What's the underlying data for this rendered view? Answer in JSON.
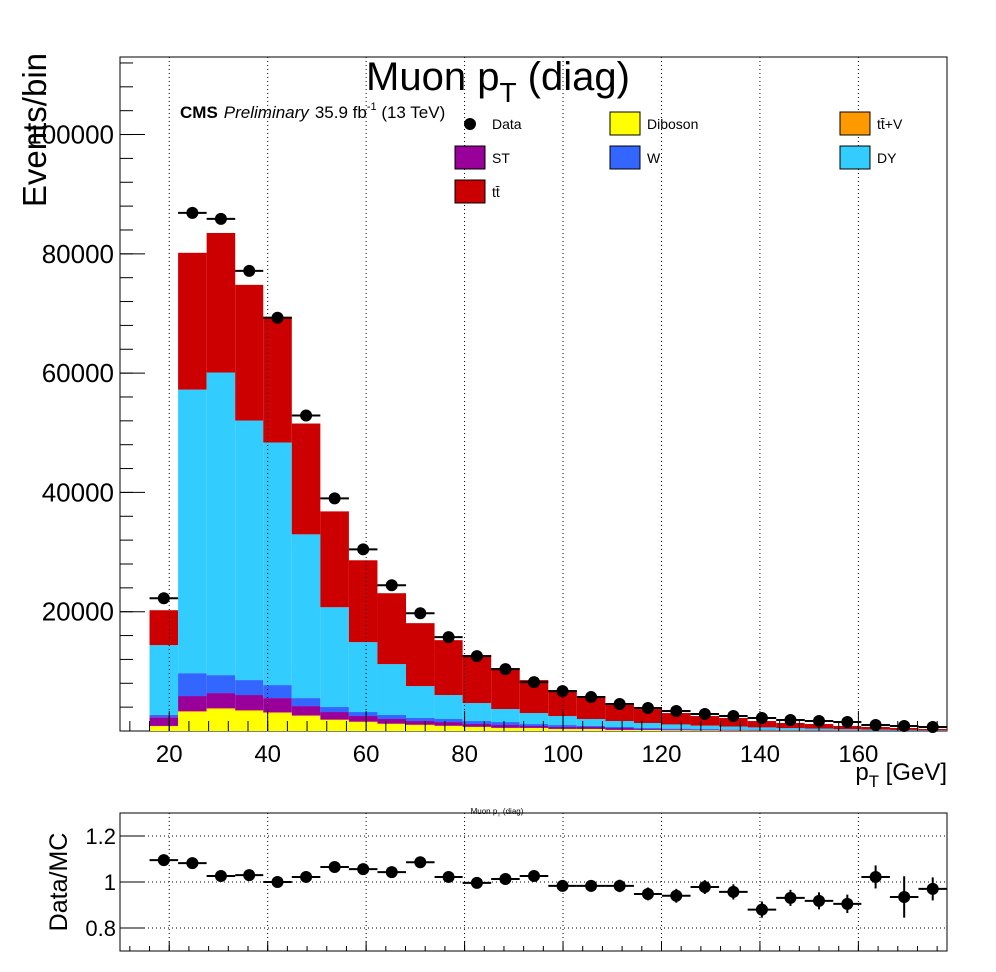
{
  "chart_data": [
    {
      "type": "stacked_histogram",
      "title": [
        "Muon p",
        "T",
        " (diag)"
      ],
      "cms": "CMS",
      "preliminary": "Preliminary",
      "lumi": [
        "35.9 fb",
        "-1",
        " (13 TeV)"
      ],
      "xlabel": [
        "p",
        "T",
        " [GeV]"
      ],
      "ylabel": "Events/bin",
      "bins": [
        16,
        21.8,
        27.6,
        33.4,
        39.1,
        44.9,
        50.7,
        56.5,
        62.3,
        68.1,
        73.9,
        79.6,
        85.4,
        91.2,
        97,
        102.8,
        108.6,
        114.4,
        120.1,
        125.9,
        131.7,
        137.5,
        143.3,
        149.1,
        154.9,
        160.6,
        166.4,
        172.2,
        178
      ],
      "series": [
        {
          "name": "Diboson",
          "color": "#ffff00",
          "values": [
            800,
            3180,
            3680,
            3350,
            3010,
            2510,
            1840,
            1500,
            1170,
            1000,
            840,
            670,
            500,
            500,
            330,
            330,
            170,
            170,
            120,
            100,
            80,
            70,
            60,
            50,
            40,
            30,
            20,
            15
          ]
        },
        {
          "name": "tt̄+V",
          "color": "#ff9900",
          "values": [
            50,
            150,
            150,
            150,
            130,
            110,
            90,
            70,
            60,
            50,
            40,
            30,
            30,
            20,
            20,
            15,
            15,
            10,
            10,
            8,
            6,
            5,
            4,
            3,
            3,
            2,
            2,
            1
          ]
        },
        {
          "name": "ST",
          "color": "#990099",
          "values": [
            1450,
            2530,
            2530,
            2530,
            2380,
            1560,
            1250,
            940,
            780,
            620,
            620,
            470,
            470,
            320,
            320,
            325,
            315,
            150,
            150,
            122,
            114,
            85,
            66,
            57,
            37,
            28,
            28,
            14
          ]
        },
        {
          "name": "W",
          "color": "#3366ff",
          "values": [
            400,
            3840,
            3010,
            2510,
            2180,
            1340,
            840,
            670,
            670,
            510,
            510,
            500,
            500,
            330,
            330,
            170,
            170,
            170,
            120,
            100,
            80,
            70,
            60,
            50,
            40,
            30,
            20,
            20
          ]
        },
        {
          "name": "DY",
          "color": "#33ccff",
          "values": [
            11700,
            47540,
            50730,
            43510,
            40670,
            27450,
            16730,
            11720,
            8530,
            5350,
            4020,
            3020,
            2180,
            1840,
            1510,
            1170,
            1000,
            840,
            700,
            570,
            470,
            370,
            290,
            240,
            180,
            150,
            110,
            70
          ]
        },
        {
          "name": "tt̄",
          "color": "#cc0000",
          "values": [
            5850,
            22930,
            23400,
            22750,
            21080,
            18580,
            16070,
            13720,
            11890,
            10550,
            9200,
            8030,
            6860,
            5530,
            4350,
            3680,
            2850,
            2340,
            1910,
            1610,
            1430,
            1070,
            860,
            770,
            540,
            430,
            320,
            210
          ]
        }
      ],
      "data": {
        "name": "Data",
        "color": "#000000",
        "values": [
          22260,
          86860,
          85860,
          77150,
          69290,
          52890,
          39000,
          30460,
          24440,
          19750,
          15730,
          12550,
          10380,
          8200,
          6690,
          5690,
          4520,
          3850,
          3350,
          2850,
          2510,
          2180,
          1840,
          1670,
          1500,
          1000,
          840,
          670
        ]
      },
      "xlim": [
        10,
        178
      ],
      "xticks": [
        20,
        40,
        60,
        80,
        100,
        120,
        140,
        160
      ],
      "ylim": [
        0,
        113000
      ],
      "yticks": [
        20000,
        40000,
        60000,
        80000,
        100000
      ],
      "grid_x": true
    },
    {
      "type": "errorbar",
      "title": [
        "Muon p",
        "T",
        " (diag)"
      ],
      "ylabel": "Data/MC",
      "values": [
        1.095,
        1.082,
        1.026,
        1.03,
        1.0,
        1.022,
        1.065,
        1.056,
        1.043,
        1.086,
        1.022,
        0.996,
        1.013,
        1.026,
        0.983,
        0.983,
        0.983,
        0.948,
        0.94,
        0.978,
        0.957,
        0.88,
        0.931,
        0.918,
        0.905,
        1.022,
        0.935,
        0.97
      ],
      "errors": [
        0.012,
        0.01,
        0.01,
        0.01,
        0.01,
        0.012,
        0.014,
        0.015,
        0.015,
        0.016,
        0.017,
        0.018,
        0.02,
        0.022,
        0.024,
        0.025,
        0.027,
        0.028,
        0.03,
        0.03,
        0.033,
        0.035,
        0.035,
        0.037,
        0.04,
        0.05,
        0.09,
        0.05
      ],
      "color": "#000000",
      "ylim": [
        0.7,
        1.3
      ],
      "yticks": [
        0.8,
        1,
        1.2
      ],
      "grid": true
    }
  ]
}
